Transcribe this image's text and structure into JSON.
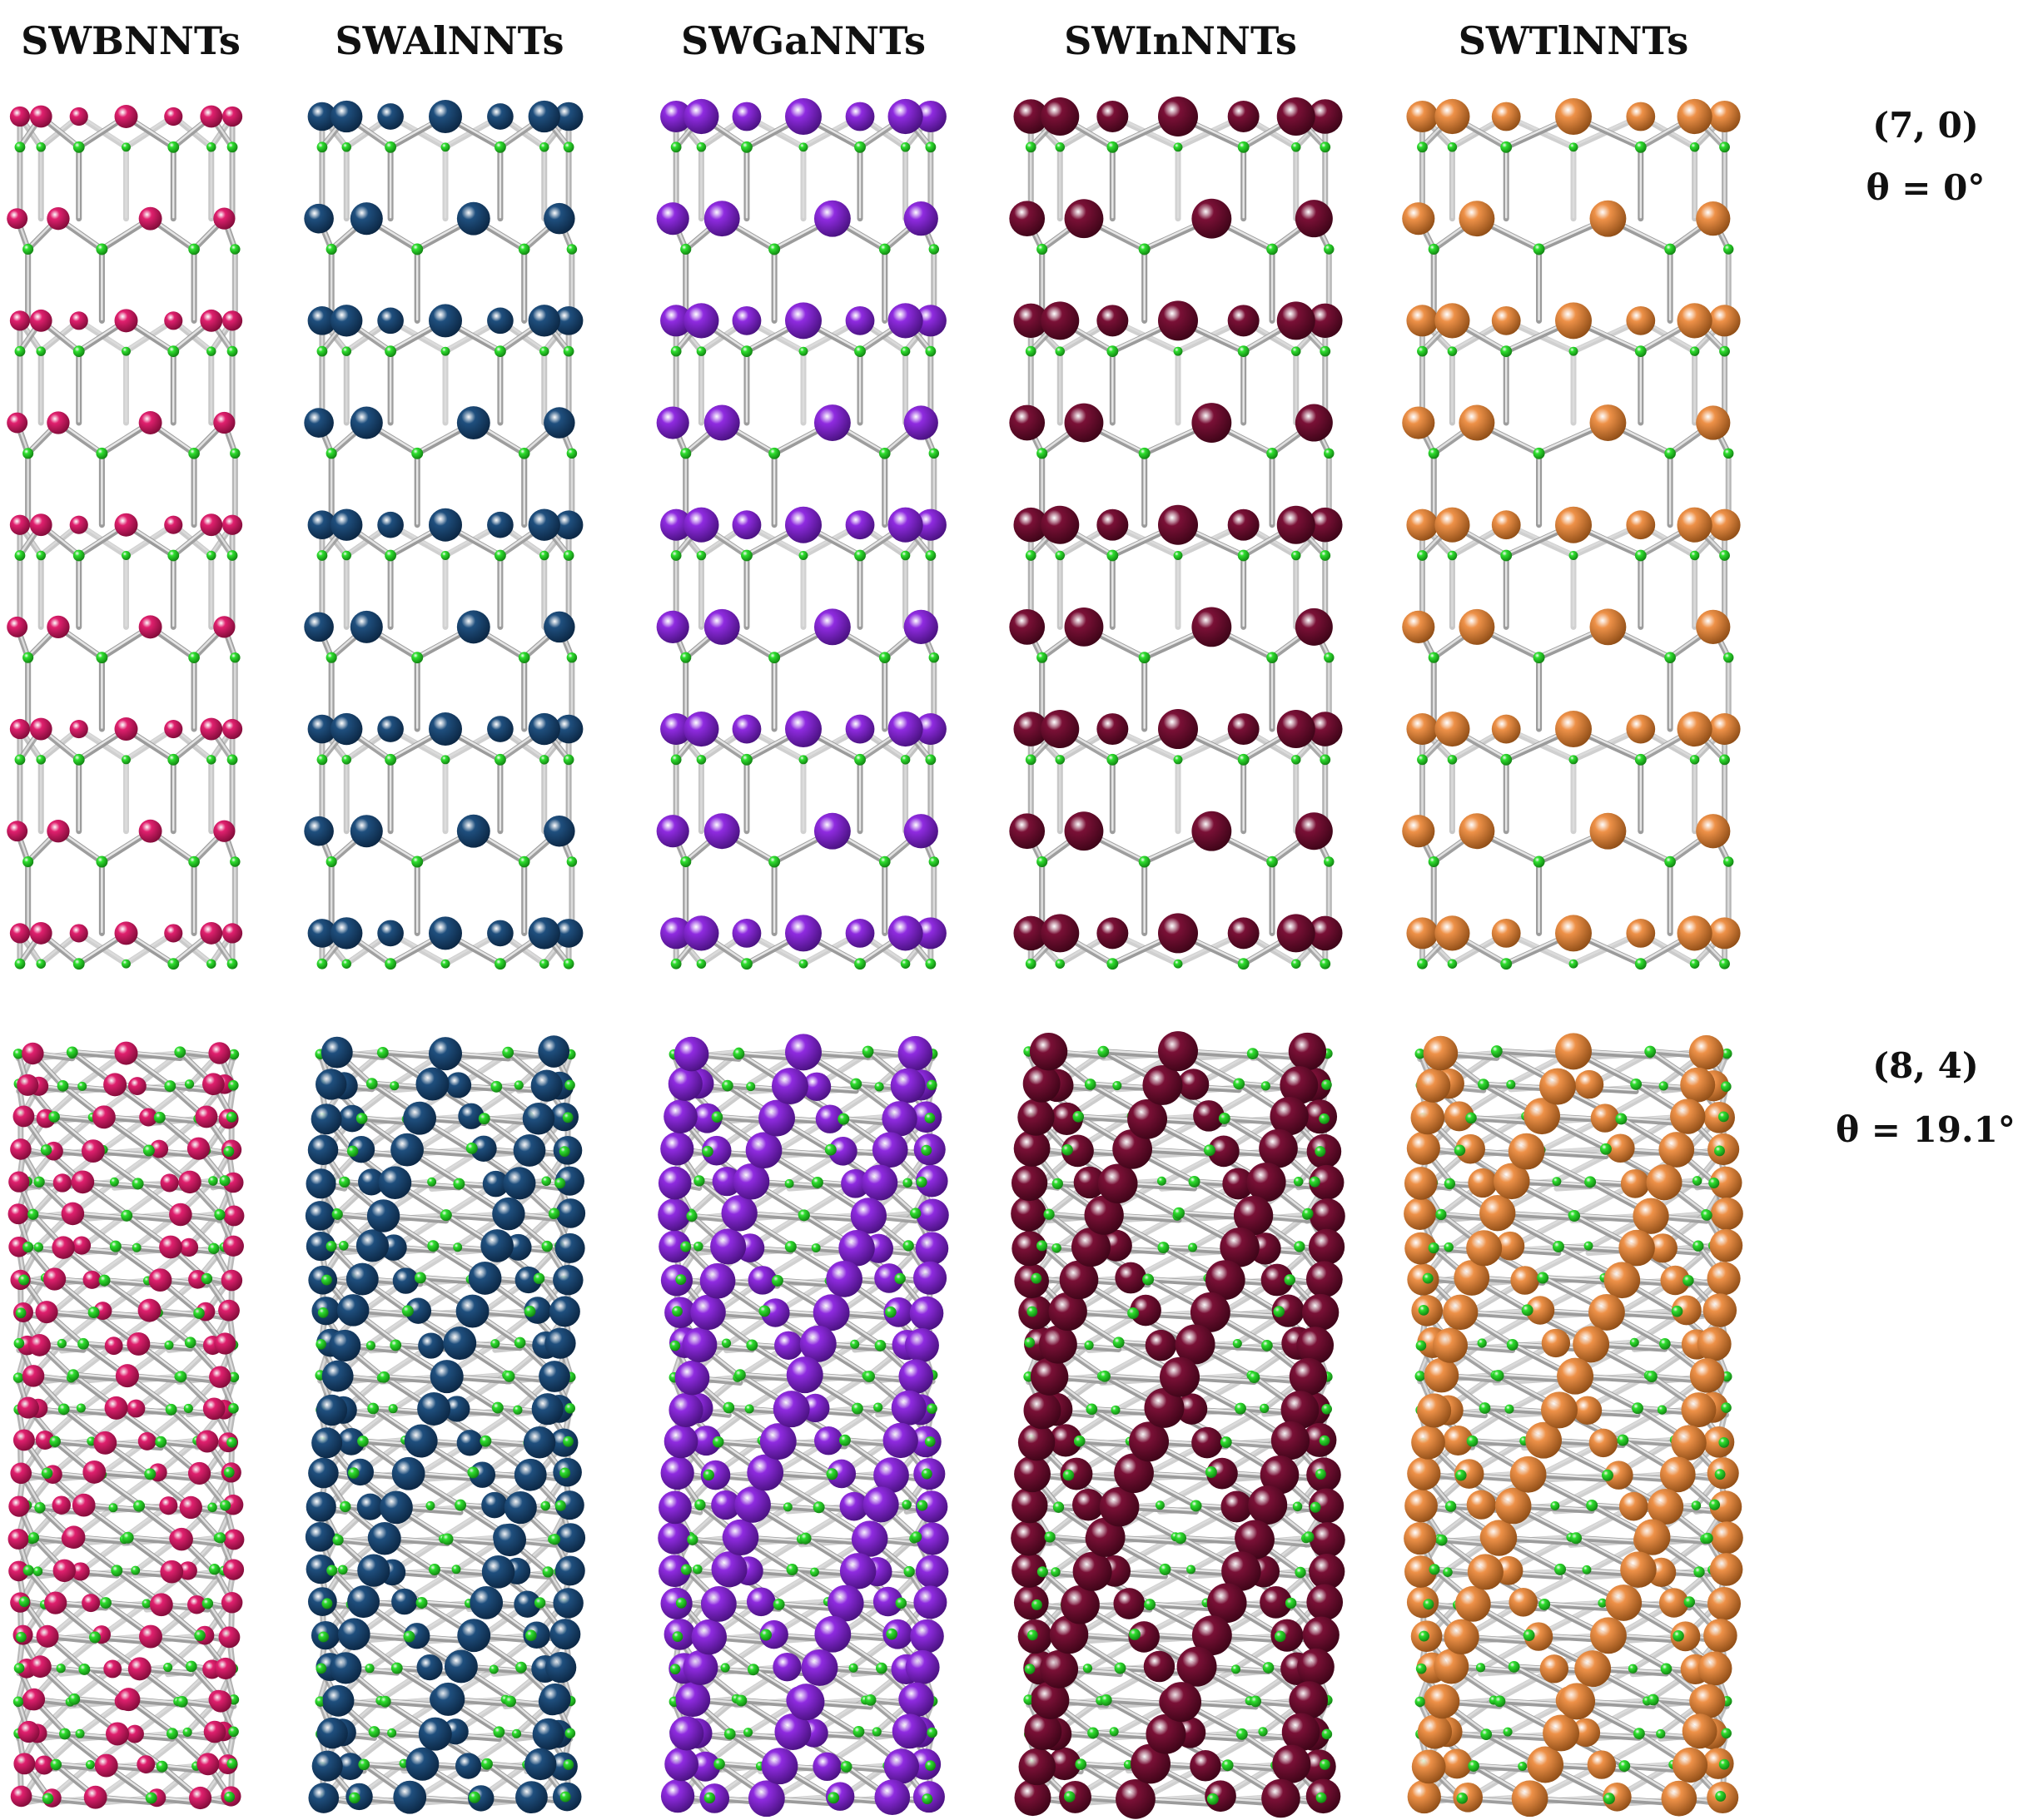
{
  "columns": [
    {
      "title": "SWBNNTs",
      "metal_color": "#e0206e",
      "metal_shade": "#7a0a35"
    },
    {
      "title": "SWAlNNTs",
      "metal_color": "#1f4f7e",
      "metal_shade": "#0a2440"
    },
    {
      "title": "SWGaNNTs",
      "metal_color": "#8f2be0",
      "metal_shade": "#45107a"
    },
    {
      "title": "SWInNNTs",
      "metal_color": "#7a1036",
      "metal_shade": "#3a0416"
    },
    {
      "title": "SWTlNNTs",
      "metal_color": "#ee9148",
      "metal_shade": "#8a4a14"
    }
  ],
  "rows": [
    {
      "chirality": "(7, 0)",
      "angle": "θ = 0°",
      "pattern": "zigzag"
    },
    {
      "chirality": "(8, 4)",
      "angle": "θ = 19.1°",
      "pattern": "chiral"
    }
  ],
  "nitrogen_color": "#2fe02f",
  "nitrogen_shade": "#0f7a0f"
}
